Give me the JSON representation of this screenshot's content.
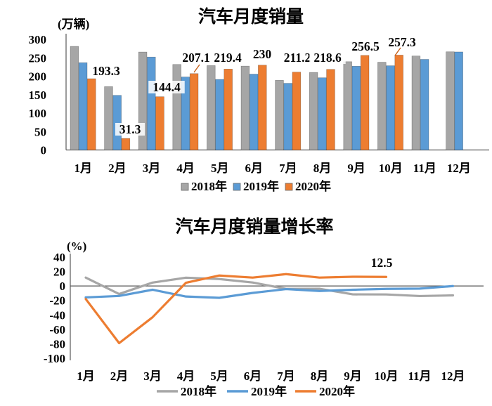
{
  "page": {
    "background": "#FFFFFF"
  },
  "colors": {
    "series_2018": "#A6A6A6",
    "series_2019": "#5B9BD5",
    "series_2020": "#ED7D31",
    "axis": "#595959"
  },
  "chart_data": [
    {
      "type": "bar",
      "title": "汽车月度销量",
      "unit_label": "(万辆)",
      "categories": [
        "1月",
        "2月",
        "3月",
        "4月",
        "5月",
        "6月",
        "7月",
        "8月",
        "9月",
        "10月",
        "11月",
        "12月"
      ],
      "ylim": [
        0,
        300
      ],
      "ytick_step": 50,
      "grid": false,
      "legend_position": "bottom",
      "series": [
        {
          "name": "2018年",
          "color": "#A6A6A6",
          "values": [
            280.9,
            171.8,
            265.6,
            231.9,
            228.8,
            227.4,
            188.9,
            210.3,
            239.4,
            238.0,
            254.8,
            266.2
          ]
        },
        {
          "name": "2019年",
          "color": "#5B9BD5",
          "values": [
            236.7,
            148.2,
            252.0,
            198.0,
            191.3,
            205.7,
            180.8,
            195.8,
            227.1,
            228.4,
            245.7,
            265.8
          ]
        },
        {
          "name": "2020年",
          "color": "#ED7D31",
          "values": [
            193.3,
            31.3,
            144.4,
            207.1,
            219.4,
            230,
            211.2,
            218.6,
            256.5,
            257.3,
            null,
            null
          ],
          "data_labels": [
            "193.3",
            "31.3",
            "144.4",
            "207.1",
            "219.4",
            "230",
            "211.2",
            "218.6",
            "256.5",
            "257.3"
          ]
        }
      ]
    },
    {
      "type": "line",
      "title": "汽车月度销量增长率",
      "unit_label": "(%)",
      "categories": [
        "1月",
        "2月",
        "3月",
        "4月",
        "5月",
        "6月",
        "7月",
        "8月",
        "9月",
        "10月",
        "11月",
        "12月"
      ],
      "ylim": [
        -100,
        40
      ],
      "ytick_step": 20,
      "grid": false,
      "legend_position": "bottom",
      "series": [
        {
          "name": "2018年",
          "color": "#A6A6A6",
          "values": [
            11.6,
            -11.1,
            4.7,
            11.5,
            9.6,
            4.8,
            -4.0,
            -3.8,
            -11.6,
            -11.7,
            -13.9,
            -13.0
          ]
        },
        {
          "name": "2019年",
          "color": "#5B9BD5",
          "values": [
            -15.8,
            -13.8,
            -5.2,
            -14.6,
            -16.4,
            -9.6,
            -4.3,
            -6.9,
            -5.2,
            -4.0,
            -3.6,
            -0.1
          ]
        },
        {
          "name": "2020年",
          "color": "#ED7D31",
          "values": [
            -18.0,
            -79.1,
            -43.3,
            4.4,
            14.5,
            11.6,
            16.4,
            11.6,
            12.8,
            12.5,
            null,
            null
          ]
        }
      ],
      "annotation": {
        "text": "12.5",
        "month": "10月",
        "series": "2020年"
      }
    }
  ]
}
